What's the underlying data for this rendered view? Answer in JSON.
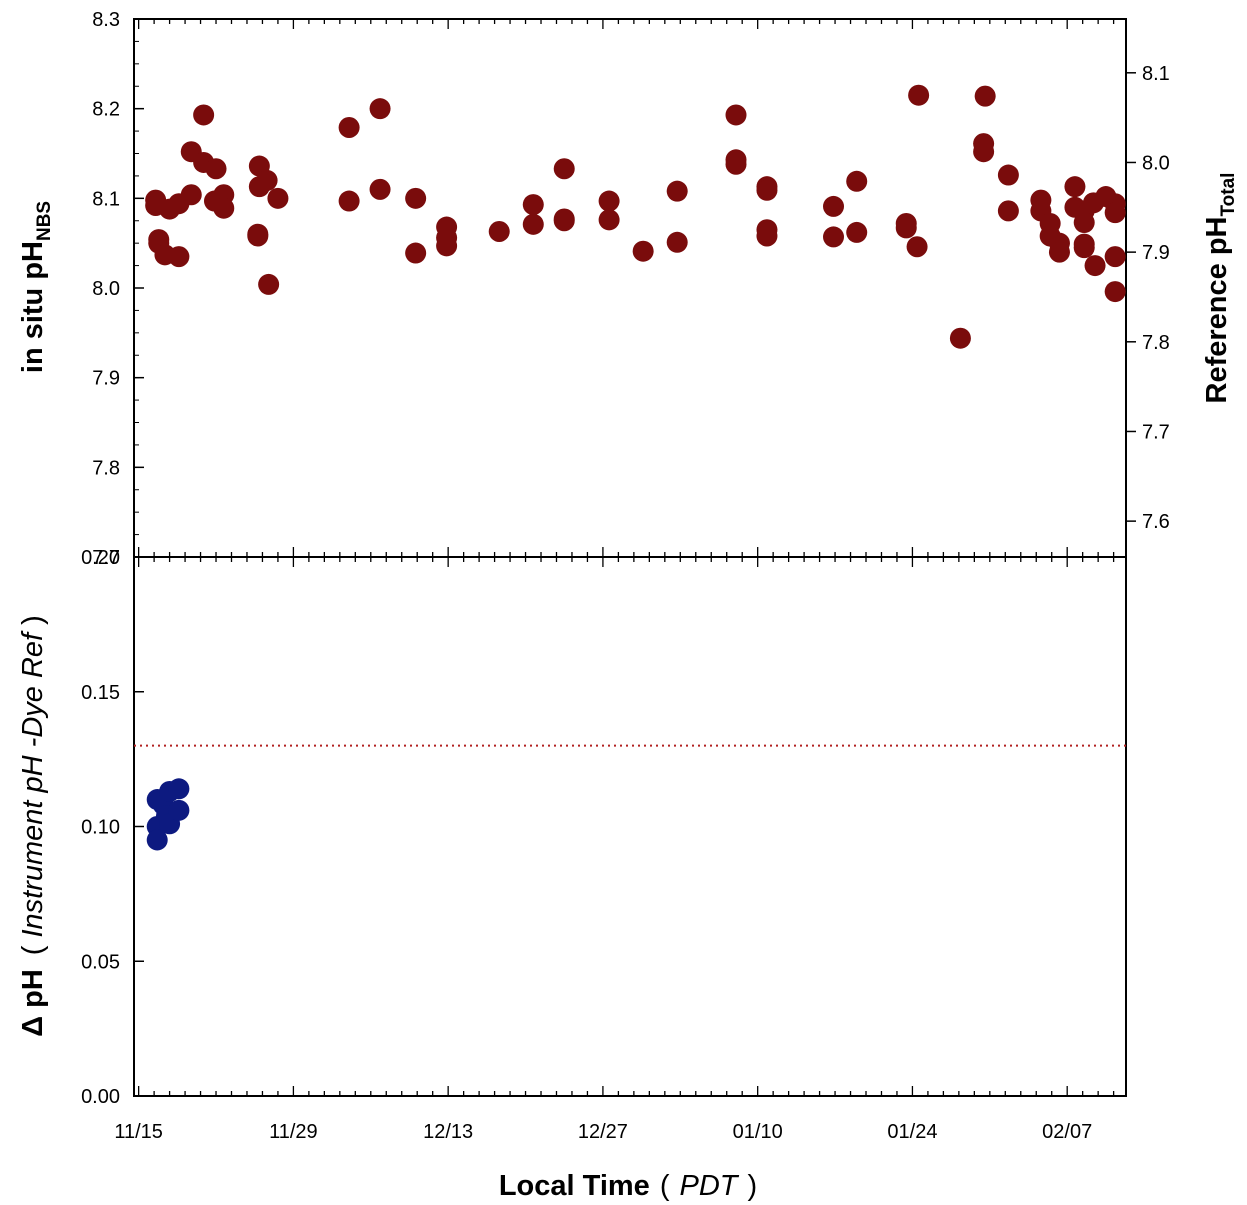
{
  "chart_data": [
    {
      "type": "scatter",
      "panel": "top",
      "title": "",
      "ylabel": {
        "prefix": "in situ pH",
        "subscript": "NBS"
      },
      "ylim": [
        7.7,
        8.3
      ],
      "yticks": [
        "8.3",
        "8.2",
        "8.1",
        "8.0",
        "7.9",
        "7.8",
        "7.7"
      ],
      "y2label": {
        "prefix": "Reference pH",
        "subscript": "Total"
      },
      "y2lim": [
        7.56,
        8.16
      ],
      "y2ticks": [
        "8.1",
        "8.0",
        "7.9",
        "7.8",
        "7.7",
        "7.6"
      ],
      "xlim": [
        -0.3,
        63.8
      ],
      "grid": false,
      "series": [
        {
          "color": "#7a0c0c",
          "points": [
            [
              1.1,
              8.098
            ],
            [
              1.1,
              8.092
            ],
            [
              1.3,
              8.054
            ],
            [
              1.3,
              8.05
            ],
            [
              1.7,
              8.037
            ],
            [
              2.0,
              8.088
            ],
            [
              2.6,
              8.035
            ],
            [
              2.6,
              8.094
            ],
            [
              3.4,
              8.152
            ],
            [
              3.4,
              8.104
            ],
            [
              4.2,
              8.193
            ],
            [
              4.2,
              8.14
            ],
            [
              4.9,
              8.097
            ],
            [
              5.0,
              8.133
            ],
            [
              5.5,
              8.104
            ],
            [
              5.5,
              8.089
            ],
            [
              7.7,
              8.06
            ],
            [
              7.7,
              8.058
            ],
            [
              7.8,
              8.136
            ],
            [
              7.8,
              8.113
            ],
            [
              8.3,
              8.12
            ],
            [
              8.4,
              8.004
            ],
            [
              9.0,
              8.1
            ],
            [
              13.6,
              8.179
            ],
            [
              13.6,
              8.097
            ],
            [
              15.6,
              8.2
            ],
            [
              15.6,
              8.11
            ],
            [
              17.9,
              8.039
            ],
            [
              17.9,
              8.1
            ],
            [
              19.9,
              8.068
            ],
            [
              19.9,
              8.056
            ],
            [
              19.9,
              8.047
            ],
            [
              23.3,
              8.063
            ],
            [
              25.5,
              8.093
            ],
            [
              25.5,
              8.071
            ],
            [
              27.5,
              8.133
            ],
            [
              27.5,
              8.077
            ],
            [
              27.5,
              8.075
            ],
            [
              30.4,
              8.097
            ],
            [
              30.4,
              8.076
            ],
            [
              32.6,
              8.041
            ],
            [
              34.8,
              8.108
            ],
            [
              34.8,
              8.051
            ],
            [
              38.6,
              8.193
            ],
            [
              38.6,
              8.143
            ],
            [
              38.6,
              8.138
            ],
            [
              40.6,
              8.113
            ],
            [
              40.6,
              8.109
            ],
            [
              40.6,
              8.065
            ],
            [
              40.6,
              8.058
            ],
            [
              44.9,
              8.091
            ],
            [
              44.9,
              8.057
            ],
            [
              46.4,
              8.119
            ],
            [
              46.4,
              8.062
            ],
            [
              49.6,
              8.072
            ],
            [
              49.6,
              8.067
            ],
            [
              50.3,
              8.046
            ],
            [
              50.4,
              8.215
            ],
            [
              53.1,
              7.944
            ],
            [
              54.7,
              8.214
            ],
            [
              54.6,
              8.161
            ],
            [
              54.6,
              8.152
            ],
            [
              56.2,
              8.126
            ],
            [
              56.2,
              8.086
            ],
            [
              58.3,
              8.098
            ],
            [
              58.3,
              8.086
            ],
            [
              58.9,
              8.072
            ],
            [
              58.9,
              8.058
            ],
            [
              59.5,
              8.05
            ],
            [
              59.5,
              8.04
            ],
            [
              60.5,
              8.113
            ],
            [
              60.5,
              8.09
            ],
            [
              61.1,
              8.086
            ],
            [
              61.1,
              8.073
            ],
            [
              61.1,
              8.049
            ],
            [
              61.1,
              8.045
            ],
            [
              61.7,
              8.095
            ],
            [
              61.8,
              8.025
            ],
            [
              62.5,
              8.102
            ],
            [
              63.1,
              8.094
            ],
            [
              63.1,
              8.084
            ],
            [
              63.1,
              8.035
            ],
            [
              63.1,
              7.996
            ]
          ]
        }
      ]
    },
    {
      "type": "scatter",
      "panel": "bottom",
      "title": "",
      "ylabel": {
        "prefix": "Δ pH",
        "open": "(",
        "inner": "Instrument pH -Dye Ref",
        "close": ")"
      },
      "ylim": [
        0.0,
        0.2
      ],
      "yticks": [
        "0.20",
        "0.15",
        "0.10",
        "0.05",
        "0.00"
      ],
      "xlabel": {
        "prefix": "Local Time",
        "open": "(",
        "inner": "PDT",
        "close": ")"
      },
      "xlim": [
        -0.3,
        63.8
      ],
      "xticks": [
        "11/15",
        "11/29",
        "12/13",
        "12/27",
        "01/10",
        "01/24",
        "02/07"
      ],
      "xtick_values": [
        0,
        10,
        20,
        30,
        40,
        50,
        60
      ],
      "reference_line": {
        "y": 0.13,
        "color": "#b22222",
        "style": "dotted"
      },
      "grid": false,
      "series": [
        {
          "color": "#0d1a80",
          "points": [
            [
              1.2,
              0.11
            ],
            [
              1.2,
              0.1
            ],
            [
              1.2,
              0.095
            ],
            [
              1.6,
              0.108
            ],
            [
              1.8,
              0.104
            ],
            [
              2.0,
              0.113
            ],
            [
              2.0,
              0.101
            ],
            [
              2.6,
              0.114
            ],
            [
              2.6,
              0.106
            ]
          ]
        }
      ]
    }
  ]
}
